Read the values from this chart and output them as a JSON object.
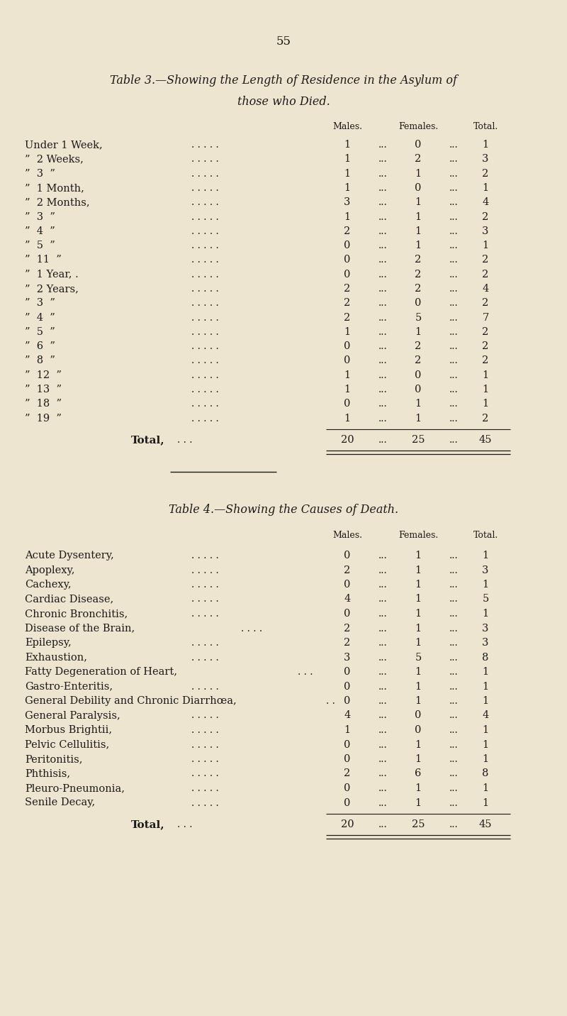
{
  "page_number": "55",
  "bg_color": "#ede5cf",
  "text_color": "#1a1a1a",
  "table3_title_line1": "Table 3.—Showing the Length of Residence in the Asylum of",
  "table3_title_line2": "those who Died.",
  "table3_rows": [
    [
      "Under 1 Week,",
      1,
      0,
      1
    ],
    [
      "”  2 Weeks,",
      1,
      2,
      3
    ],
    [
      "”  3  ”",
      1,
      1,
      2
    ],
    [
      "”  1 Month,",
      1,
      0,
      1
    ],
    [
      "”  2 Months,",
      3,
      1,
      4
    ],
    [
      "”  3  ”",
      1,
      1,
      2
    ],
    [
      "”  4  ”",
      2,
      1,
      3
    ],
    [
      "”  5  ”",
      0,
      1,
      1
    ],
    [
      "”  11  ”",
      0,
      2,
      2
    ],
    [
      "”  1 Year, .",
      0,
      2,
      2
    ],
    [
      "”  2 Years,",
      2,
      2,
      4
    ],
    [
      "”  3  ”",
      2,
      0,
      2
    ],
    [
      "”  4  ”",
      2,
      5,
      7
    ],
    [
      "”  5  ”",
      1,
      1,
      2
    ],
    [
      "”  6  ”",
      0,
      2,
      2
    ],
    [
      "”  8  ”",
      0,
      2,
      2
    ],
    [
      "”  12  ”",
      1,
      0,
      1
    ],
    [
      "”  13  ”",
      1,
      0,
      1
    ],
    [
      "”  18  ”",
      0,
      1,
      1
    ],
    [
      "”  19  ”",
      1,
      1,
      2
    ]
  ],
  "table3_total": [
    20,
    25,
    45
  ],
  "table4_title": "Table 4.—Showing the Causes of Death.",
  "table4_rows": [
    [
      "Acute Dysentery,",
      0,
      1,
      1
    ],
    [
      "Apoplexy,",
      2,
      1,
      3
    ],
    [
      "Cachexy,",
      0,
      1,
      1
    ],
    [
      "Cardiac Disease,",
      4,
      1,
      5
    ],
    [
      "Chronic Bronchitis,",
      0,
      1,
      1
    ],
    [
      "Disease of the Brain,",
      2,
      1,
      3
    ],
    [
      "Epilepsy,",
      2,
      1,
      3
    ],
    [
      "Exhaustion,",
      3,
      5,
      8
    ],
    [
      "Fatty Degeneration of Heart,",
      0,
      1,
      1
    ],
    [
      "Gastro-Enteritis,",
      0,
      1,
      1
    ],
    [
      "General Debility and Chronic Diarrhœa,",
      0,
      1,
      1
    ],
    [
      "General Paralysis,",
      4,
      0,
      4
    ],
    [
      "Morbus Brightii,",
      1,
      0,
      1
    ],
    [
      "Pelvic Cellulitis,",
      0,
      1,
      1
    ],
    [
      "Peritonitis,",
      0,
      1,
      1
    ],
    [
      "Phthisis,",
      2,
      6,
      8
    ],
    [
      "Pleuro-Pneumonia,",
      0,
      1,
      1
    ],
    [
      "Senile Decay,",
      0,
      1,
      1
    ]
  ],
  "table4_total": [
    20,
    25,
    45
  ],
  "figwidth": 8.0,
  "figheight": 14.32,
  "dpi": 100
}
